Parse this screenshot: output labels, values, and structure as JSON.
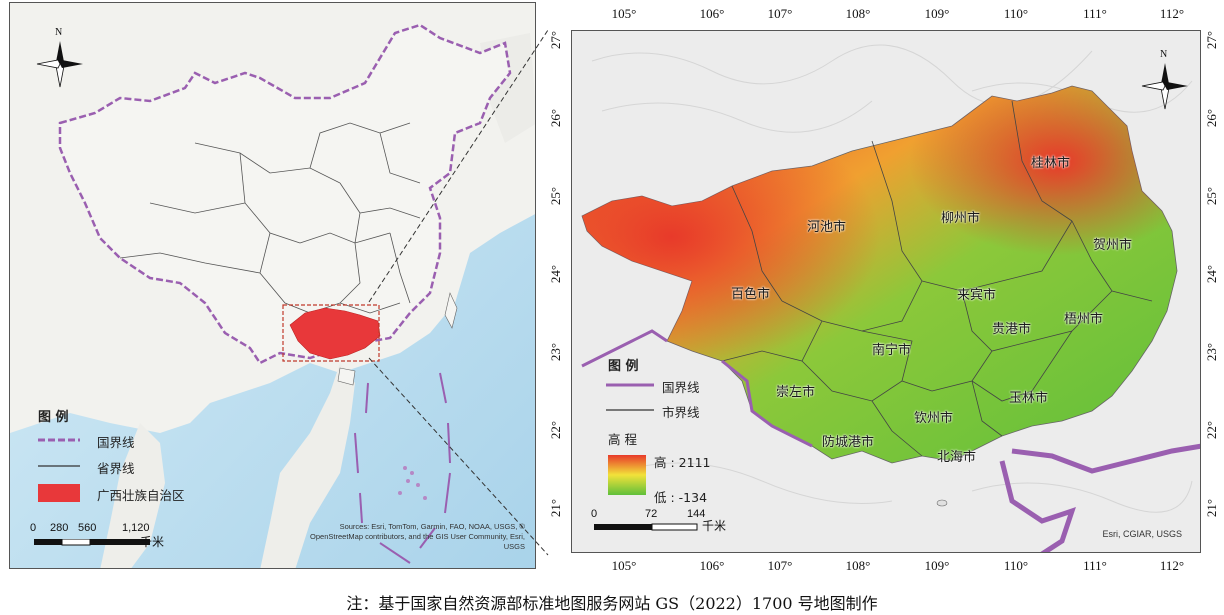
{
  "left_map": {
    "north_label": "N",
    "legend": {
      "title": "图 例",
      "items": [
        {
          "label": "国界线",
          "symbol": "national-boundary",
          "color": "#9a5fb0"
        },
        {
          "label": "省界线",
          "symbol": "provincial-boundary",
          "color": "#333333"
        },
        {
          "label": "广西壮族自治区",
          "symbol": "guangxi-fill",
          "color": "#e8383a"
        }
      ]
    },
    "scale": {
      "ticks": [
        "0",
        "280",
        "560",
        "1,120"
      ],
      "unit": "千米"
    },
    "credits": [
      "Sources: Esri, TomTom, Garmin, FAO, NOAA, USGS, ©",
      "OpenStreetMap contributors, and the GIS User Community, Esri,",
      "USGS"
    ]
  },
  "right_map": {
    "north_label": "N",
    "longitude_ticks": [
      "105°",
      "106°",
      "107°",
      "108°",
      "109°",
      "110°",
      "111°",
      "112°"
    ],
    "latitude_ticks": [
      "27°",
      "26°",
      "25°",
      "24°",
      "23°",
      "22°",
      "21°"
    ],
    "cities": [
      "桂林市",
      "柳州市",
      "河池市",
      "贺州市",
      "百色市",
      "来宾市",
      "贵港市",
      "梧州市",
      "南宁市",
      "崇左市",
      "玉林市",
      "钦州市",
      "防城港市",
      "北海市"
    ],
    "legend": {
      "title": "图 例",
      "items": [
        {
          "label": "国界线",
          "symbol": "national-boundary",
          "color": "#9a5fb0"
        },
        {
          "label": "市界线",
          "symbol": "city-boundary",
          "color": "#333333"
        }
      ],
      "elevation": {
        "title": "高 程",
        "high": "高 : 2111",
        "low": "低 : -134",
        "high_color": "#e83a2a",
        "mid_color": "#f2e23a",
        "low_color": "#5fbf3a"
      }
    },
    "scale": {
      "ticks": [
        "0",
        "72",
        "144"
      ],
      "unit": "千米"
    },
    "credits": "Esri, CGIAR, USGS"
  },
  "caption": "注：基于国家自然资源部标准地图服务网站 GS（2022）1700 号地图制作"
}
